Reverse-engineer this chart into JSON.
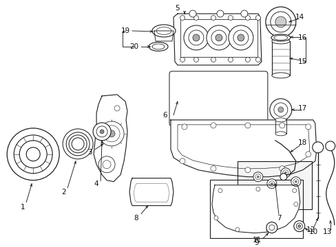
{
  "bg": "#ffffff",
  "line_color": "#1a1a1a",
  "lw": 0.8,
  "label_fs": 7.5
}
